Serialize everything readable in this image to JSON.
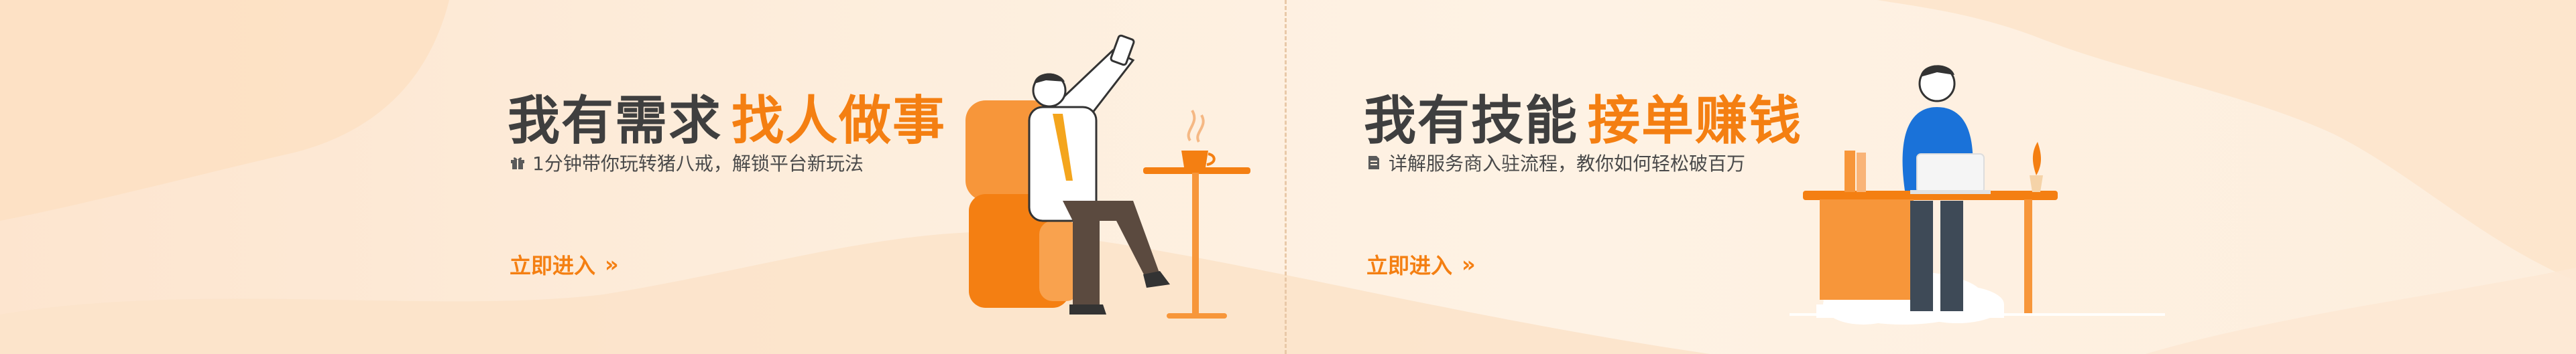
{
  "left_panel": {
    "title_main": "我有需求",
    "title_accent": "找人做事",
    "subtitle": "1分钟带你玩转猪八戒，解锁平台新玩法",
    "cta_label": "立即进入",
    "cta_chevron": "»",
    "subtitle_icon": "gift-icon"
  },
  "right_panel": {
    "title_main": "我有技能",
    "title_accent": "接单赚钱",
    "subtitle": "详解服务商入驻流程，教你如何轻松破百万",
    "cta_label": "立即进入",
    "cta_chevron": "»",
    "subtitle_icon": "document-icon"
  },
  "colors": {
    "accent": "#f47f12",
    "title_text": "#3f3f3f",
    "background": "#fdeedd"
  }
}
